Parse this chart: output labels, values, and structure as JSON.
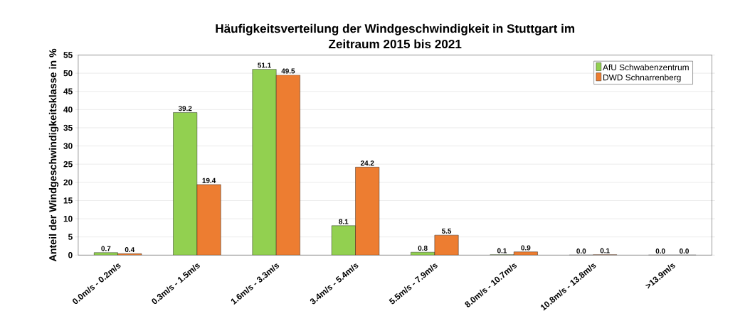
{
  "chart_data": {
    "type": "bar",
    "title": "Häufigkeitsverteilung der Windgeschwindigkeit in Stuttgart im Zeitraum 2015 bis 2021",
    "ylabel": "Anteil der Windgeschwindigkeitsklasse in %",
    "categories": [
      "0.0m/s - 0.2m/s",
      "0.3m/s - 1.5m/s",
      "1.6m/s - 3.3m/s",
      "3.4m/s - 5.4m/s",
      "5.5m/s - 7.9m/s",
      "8.0m/s - 10.7m/s",
      "10.8m/s - 13.8m/s",
      ">13.9m/s"
    ],
    "series": [
      {
        "name": "AfU Schwabenzentrum",
        "color": "#92d050",
        "values": [
          0.7,
          39.2,
          51.1,
          8.1,
          0.8,
          0.1,
          0.0,
          0.0
        ],
        "value_labels": [
          "0.7",
          "39.2",
          "51.1",
          "8.1",
          "0.8",
          "0.1",
          "0.0",
          "0.0"
        ]
      },
      {
        "name": "DWD Schnarrenberg",
        "color": "#ed7d31",
        "values": [
          0.4,
          19.4,
          49.5,
          24.2,
          5.5,
          0.9,
          0.1,
          0.0
        ],
        "value_labels": [
          "0.4",
          "19.4",
          "49.5",
          "24.2",
          "5.5",
          "0.9",
          "0.1",
          "0.0"
        ]
      }
    ],
    "ylim": [
      0,
      55
    ],
    "yticks": [
      0,
      5,
      10,
      15,
      20,
      25,
      30,
      35,
      40,
      45,
      50,
      55
    ],
    "grid": "y",
    "legend": "top right"
  }
}
